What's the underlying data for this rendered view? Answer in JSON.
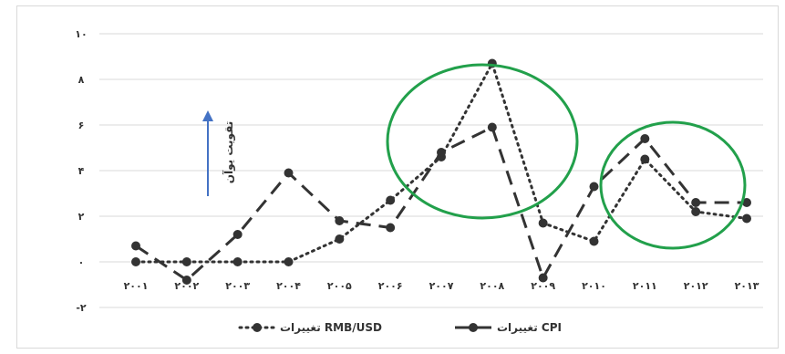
{
  "chart_data": {
    "type": "line",
    "categories": [
      "۲۰۰۱",
      "۲۰۰۲",
      "۲۰۰۳",
      "۲۰۰۴",
      "۲۰۰۵",
      "۲۰۰۶",
      "۲۰۰۷",
      "۲۰۰۸",
      "۲۰۰۹",
      "۲۰۱۰",
      "۲۰۱۱",
      "۲۰۱۲",
      "۲۰۱۳"
    ],
    "y_ticks": [
      {
        "value": -2,
        "label": "-۲"
      },
      {
        "value": 0,
        "label": "۰"
      },
      {
        "value": 2,
        "label": "۲"
      },
      {
        "value": 4,
        "label": "۴"
      },
      {
        "value": 6,
        "label": "۶"
      },
      {
        "value": 8,
        "label": "۸"
      },
      {
        "value": 10,
        "label": "۱۰"
      }
    ],
    "ylim": [
      -2,
      10
    ],
    "grid": true,
    "legend_position": "bottom",
    "series": [
      {
        "name": "تغییرات RMB/USD",
        "style": "dotted",
        "color": "#333333",
        "values": [
          0,
          0,
          0,
          0,
          1.0,
          2.7,
          4.6,
          8.7,
          1.7,
          0.9,
          4.5,
          2.2,
          1.9
        ]
      },
      {
        "name": "تغییرات CPI",
        "style": "dashed",
        "color": "#333333",
        "values": [
          0.7,
          -0.8,
          1.2,
          3.9,
          1.8,
          1.5,
          4.8,
          5.9,
          -0.7,
          3.3,
          5.4,
          2.6,
          2.6
        ]
      }
    ],
    "annotation": {
      "text": "تقویت یوآن",
      "arrow_color": "#4472c4"
    },
    "highlight_color": "#22a04b"
  }
}
